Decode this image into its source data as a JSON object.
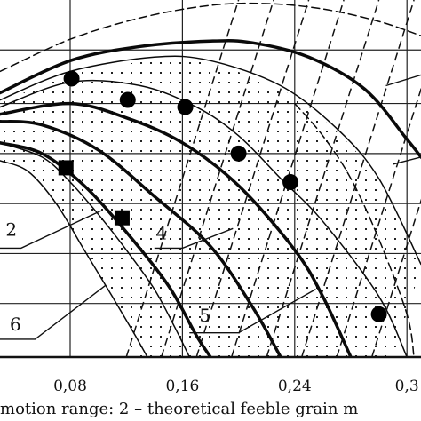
{
  "chart_data": {
    "type": "line",
    "xlim": [
      0.03,
      0.33
    ],
    "ylim": [
      0,
      1
    ],
    "grid": true,
    "x_ticks": [
      {
        "value": 0.08,
        "label": "0,08"
      },
      {
        "value": 0.16,
        "label": "0,16"
      },
      {
        "value": 0.24,
        "label": "0,24"
      },
      {
        "value": 0.32,
        "label": "0,3"
      }
    ],
    "y_grid": [
      0.15,
      0.29,
      0.43,
      0.57,
      0.71,
      0.86
    ],
    "curves": [
      {
        "id": "dashed-envelope",
        "style": "dashed",
        "width": 1.5,
        "points": [
          [
            0.03,
            0.8
          ],
          [
            0.08,
            0.89
          ],
          [
            0.13,
            0.95
          ],
          [
            0.18,
            0.985
          ],
          [
            0.22,
            0.99
          ],
          [
            0.26,
            0.975
          ],
          [
            0.3,
            0.94
          ],
          [
            0.33,
            0.9
          ]
        ]
      },
      {
        "id": "dashed-inner",
        "style": "dashed",
        "width": 1.5,
        "points": [
          [
            0.24,
            0.71
          ],
          [
            0.26,
            0.62
          ],
          [
            0.28,
            0.5
          ],
          [
            0.3,
            0.33
          ],
          [
            0.32,
            0.12
          ],
          [
            0.325,
            0.0
          ]
        ]
      },
      {
        "id": "upper-outer",
        "style": "solid",
        "width": 3.5,
        "points": [
          [
            0.03,
            0.74
          ],
          [
            0.08,
            0.83
          ],
          [
            0.13,
            0.87
          ],
          [
            0.18,
            0.885
          ],
          [
            0.21,
            0.88
          ],
          [
            0.25,
            0.84
          ],
          [
            0.29,
            0.75
          ],
          [
            0.32,
            0.61
          ],
          [
            0.33,
            0.56
          ]
        ]
      },
      {
        "id": "curve-thin-a",
        "style": "solid",
        "width": 1.5,
        "points": [
          [
            0.03,
            0.72
          ],
          [
            0.08,
            0.8
          ],
          [
            0.14,
            0.84
          ],
          [
            0.18,
            0.83
          ],
          [
            0.23,
            0.76
          ],
          [
            0.27,
            0.64
          ],
          [
            0.3,
            0.5
          ],
          [
            0.33,
            0.26
          ]
        ]
      },
      {
        "id": "curve-thin-b",
        "style": "solid",
        "width": 1.5,
        "points": [
          [
            0.03,
            0.7
          ],
          [
            0.08,
            0.77
          ],
          [
            0.13,
            0.76
          ],
          [
            0.17,
            0.7
          ],
          [
            0.2,
            0.62
          ],
          [
            0.23,
            0.5
          ],
          [
            0.26,
            0.38
          ],
          [
            0.3,
            0.17
          ],
          [
            0.32,
            0.0
          ]
        ]
      },
      {
        "id": "bold-c",
        "style": "solid",
        "width": 3.5,
        "points": [
          [
            0.03,
            0.68
          ],
          [
            0.08,
            0.71
          ],
          [
            0.12,
            0.67
          ],
          [
            0.16,
            0.6
          ],
          [
            0.2,
            0.48
          ],
          [
            0.24,
            0.3
          ],
          [
            0.26,
            0.17
          ],
          [
            0.28,
            0.0
          ]
        ]
      },
      {
        "id": "bold-d",
        "style": "solid",
        "width": 3.5,
        "points": [
          [
            0.03,
            0.66
          ],
          [
            0.06,
            0.65
          ],
          [
            0.1,
            0.58
          ],
          [
            0.14,
            0.45
          ],
          [
            0.18,
            0.31
          ],
          [
            0.21,
            0.14
          ],
          [
            0.23,
            0.0
          ]
        ]
      },
      {
        "id": "thin-e",
        "style": "solid",
        "width": 1.5,
        "points": [
          [
            0.03,
            0.6
          ],
          [
            0.06,
            0.56
          ],
          [
            0.08,
            0.49
          ],
          [
            0.1,
            0.4
          ],
          [
            0.12,
            0.3
          ],
          [
            0.14,
            0.19
          ],
          [
            0.155,
            0.08
          ],
          [
            0.165,
            0.0
          ]
        ]
      },
      {
        "id": "bold-f",
        "style": "solid",
        "width": 3.5,
        "points": [
          [
            0.03,
            0.6
          ],
          [
            0.06,
            0.57
          ],
          [
            0.09,
            0.48
          ],
          [
            0.12,
            0.35
          ],
          [
            0.15,
            0.2
          ],
          [
            0.17,
            0.06
          ],
          [
            0.18,
            0.0
          ]
        ]
      },
      {
        "id": "thin-g",
        "style": "solid",
        "width": 1.5,
        "points": [
          [
            0.03,
            0.55
          ],
          [
            0.05,
            0.52
          ],
          [
            0.07,
            0.43
          ],
          [
            0.09,
            0.3
          ],
          [
            0.11,
            0.17
          ],
          [
            0.125,
            0.07
          ],
          [
            0.135,
            0.0
          ]
        ]
      }
    ],
    "dashed_hatch_x0": [
      0.17,
      0.195,
      0.22,
      0.245,
      0.27,
      0.295,
      0.32,
      0.345
    ],
    "dotted_region": {
      "top": [
        [
          0.03,
          0.71
        ],
        [
          0.08,
          0.79
        ],
        [
          0.14,
          0.83
        ],
        [
          0.18,
          0.82
        ],
        [
          0.23,
          0.75
        ],
        [
          0.27,
          0.63
        ],
        [
          0.3,
          0.49
        ],
        [
          0.33,
          0.25
        ]
      ],
      "bottom": [
        [
          0.03,
          0.55
        ],
        [
          0.05,
          0.52
        ],
        [
          0.07,
          0.43
        ],
        [
          0.09,
          0.3
        ],
        [
          0.11,
          0.17
        ],
        [
          0.125,
          0.07
        ],
        [
          0.135,
          0.0
        ],
        [
          0.31,
          0.0
        ]
      ]
    },
    "circles": [
      [
        0.081,
        0.78
      ],
      [
        0.121,
        0.72
      ],
      [
        0.162,
        0.7
      ],
      [
        0.2,
        0.57
      ],
      [
        0.237,
        0.49
      ],
      [
        0.3,
        0.12
      ]
    ],
    "squares": [
      [
        0.077,
        0.53
      ],
      [
        0.117,
        0.39
      ]
    ],
    "callouts": [
      {
        "label": "2",
        "label_x": 0.034,
        "label_y": 0.34,
        "line": [
          [
            0.03,
            0.305
          ],
          [
            0.045,
            0.305
          ],
          [
            0.102,
            0.41
          ]
        ]
      },
      {
        "label": "4",
        "label_x": 0.141,
        "label_y": 0.33,
        "line": [
          [
            0.14,
            0.305
          ],
          [
            0.16,
            0.305
          ],
          [
            0.196,
            0.36
          ]
        ]
      },
      {
        "label": "5",
        "label_x": 0.172,
        "label_y": 0.1,
        "line": [
          [
            0.165,
            0.068
          ],
          [
            0.2,
            0.068
          ],
          [
            0.255,
            0.19
          ]
        ]
      },
      {
        "label": "6",
        "label_x": 0.037,
        "label_y": 0.075,
        "line": [
          [
            0.03,
            0.05
          ],
          [
            0.055,
            0.05
          ],
          [
            0.105,
            0.2
          ]
        ]
      },
      {
        "label": "",
        "line": [
          [
            0.305,
            0.76
          ],
          [
            0.33,
            0.79
          ]
        ]
      },
      {
        "label": "",
        "line": [
          [
            0.31,
            0.54
          ],
          [
            0.33,
            0.56
          ]
        ]
      }
    ],
    "caption": "motion range: 2 – theoretical feeble grain m"
  }
}
